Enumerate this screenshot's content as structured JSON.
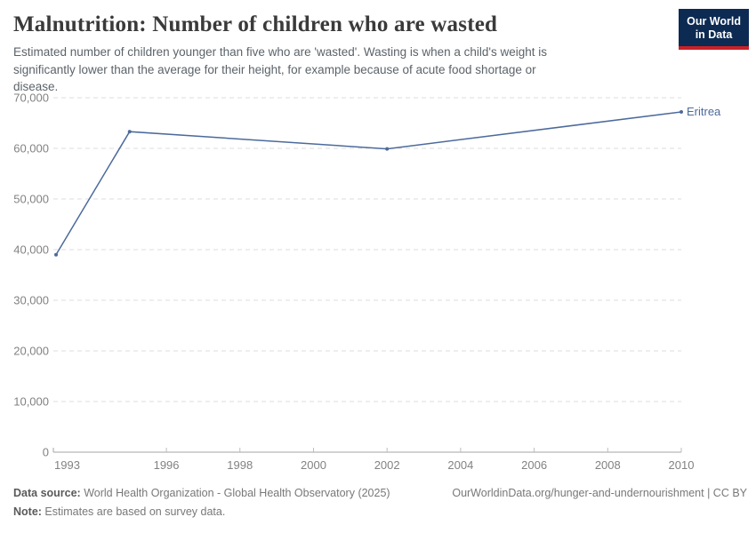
{
  "header": {
    "title": "Malnutrition: Number of children who are wasted",
    "subtitle": "Estimated number of children younger than five who are 'wasted'. Wasting is when a child's weight is significantly lower than the average for their height, for example because of acute food shortage or disease.",
    "logo": {
      "line1": "Our World",
      "line2": "in Data",
      "bg_color": "#0d2a52",
      "accent_color": "#cb2026"
    }
  },
  "chart_data": {
    "type": "line",
    "title": "Malnutrition: Number of children who are wasted",
    "x": [
      1993,
      1995,
      2002,
      2010
    ],
    "series": [
      {
        "name": "Eritrea",
        "color": "#4c6a9c",
        "values": [
          39000,
          63300,
          59900,
          67200
        ]
      }
    ],
    "xlim": [
      1993,
      2010
    ],
    "ylim": [
      0,
      70000
    ],
    "x_ticks": [
      1993,
      1996,
      1998,
      2000,
      2002,
      2004,
      2006,
      2008,
      2010
    ],
    "y_ticks": [
      0,
      10000,
      20000,
      30000,
      40000,
      50000,
      60000,
      70000
    ],
    "grid": "horizontal-dashed",
    "gridline_color": "#dedede",
    "axis_color": "#a5a5a5",
    "tick_label_color": "#828282",
    "legend_position": "end-of-line-label"
  },
  "footer": {
    "datasource_label": "Data source:",
    "datasource_text": " World Health Organization - Global Health Observatory (2025)",
    "url": "OurWorldinData.org/hunger-and-undernourishment | CC BY",
    "note_label": "Note:",
    "note_text": " Estimates are based on survey data."
  }
}
